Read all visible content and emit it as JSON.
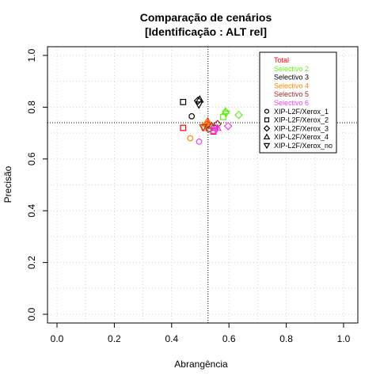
{
  "chart_data": {
    "type": "scatter",
    "title": "Comparação de cenários",
    "subtitle": "[Identificação : ALT rel]",
    "xlabel": "Abrangência",
    "ylabel": "Precisão",
    "xlim": [
      0,
      1
    ],
    "ylim": [
      0,
      1
    ],
    "xticks": [
      "0.0",
      "0.2",
      "0.4",
      "0.6",
      "0.8",
      "1.0"
    ],
    "yticks": [
      "0.0",
      "0.2",
      "0.4",
      "0.6",
      "0.8",
      "1.0"
    ],
    "grid": true,
    "reference_lines": {
      "x": 0.527,
      "y": 0.74
    },
    "legend_position": "top-right",
    "legend_colors": [
      {
        "name": "Total",
        "color": "#ff0000"
      },
      {
        "name": "Selectivo 2",
        "color": "#66ee22"
      },
      {
        "name": "Selectivo 3",
        "color": "#000000"
      },
      {
        "name": "Selectivo 4",
        "color": "#ff8800"
      },
      {
        "name": "Selectivo 5",
        "color": "#a52a2a"
      },
      {
        "name": "Selectivo 6",
        "color": "#ee44ee"
      }
    ],
    "legend_shapes": [
      {
        "name": "XIP-L2F/Xerox_1",
        "shape": "circle"
      },
      {
        "name": "XIP-L2F/Xerox_2",
        "shape": "square"
      },
      {
        "name": "XIP-L2F/Xerox_3",
        "shape": "diamond"
      },
      {
        "name": "XIP-L2F/Xerox_4",
        "shape": "triangle-up"
      },
      {
        "name": "XIP-L2F/Xerox_no",
        "shape": "triangle-down"
      }
    ],
    "points": [
      {
        "x": 0.523,
        "y": 0.735,
        "shape": "circle",
        "color": "#ff0000"
      },
      {
        "x": 0.44,
        "y": 0.72,
        "shape": "square",
        "color": "#ff0000"
      },
      {
        "x": 0.546,
        "y": 0.706,
        "shape": "square",
        "color": "#ff0000"
      },
      {
        "x": 0.526,
        "y": 0.745,
        "shape": "triangle-up",
        "color": "#ff0000"
      },
      {
        "x": 0.521,
        "y": 0.725,
        "shape": "triangle-down",
        "color": "#ff0000"
      },
      {
        "x": 0.59,
        "y": 0.78,
        "shape": "circle",
        "color": "#66ee22"
      },
      {
        "x": 0.58,
        "y": 0.762,
        "shape": "square",
        "color": "#66ee22"
      },
      {
        "x": 0.634,
        "y": 0.77,
        "shape": "diamond",
        "color": "#66ee22"
      },
      {
        "x": 0.588,
        "y": 0.785,
        "shape": "triangle-up",
        "color": "#66ee22"
      },
      {
        "x": 0.59,
        "y": 0.775,
        "shape": "triangle-down",
        "color": "#66ee22"
      },
      {
        "x": 0.47,
        "y": 0.765,
        "shape": "circle",
        "color": "#000000"
      },
      {
        "x": 0.44,
        "y": 0.82,
        "shape": "square",
        "color": "#000000"
      },
      {
        "x": 0.492,
        "y": 0.825,
        "shape": "diamond",
        "color": "#000000"
      },
      {
        "x": 0.498,
        "y": 0.83,
        "shape": "triangle-up",
        "color": "#000000"
      },
      {
        "x": 0.495,
        "y": 0.81,
        "shape": "triangle-down",
        "color": "#000000"
      },
      {
        "x": 0.465,
        "y": 0.68,
        "shape": "circle",
        "color": "#ff8800"
      },
      {
        "x": 0.515,
        "y": 0.72,
        "shape": "square",
        "color": "#ff8800"
      },
      {
        "x": 0.525,
        "y": 0.74,
        "shape": "diamond",
        "color": "#ff8800"
      },
      {
        "x": 0.52,
        "y": 0.738,
        "shape": "triangle-up",
        "color": "#ff8800"
      },
      {
        "x": 0.518,
        "y": 0.728,
        "shape": "triangle-down",
        "color": "#ff8800"
      },
      {
        "x": 0.53,
        "y": 0.715,
        "shape": "circle",
        "color": "#a52a2a"
      },
      {
        "x": 0.55,
        "y": 0.72,
        "shape": "square",
        "color": "#a52a2a"
      },
      {
        "x": 0.56,
        "y": 0.735,
        "shape": "diamond",
        "color": "#a52a2a"
      },
      {
        "x": 0.54,
        "y": 0.728,
        "shape": "triangle-up",
        "color": "#a52a2a"
      },
      {
        "x": 0.51,
        "y": 0.722,
        "shape": "triangle-down",
        "color": "#a52a2a"
      },
      {
        "x": 0.496,
        "y": 0.667,
        "shape": "circle",
        "color": "#ee44ee"
      },
      {
        "x": 0.547,
        "y": 0.71,
        "shape": "square",
        "color": "#ee44ee"
      },
      {
        "x": 0.597,
        "y": 0.727,
        "shape": "diamond",
        "color": "#ee44ee"
      },
      {
        "x": 0.56,
        "y": 0.72,
        "shape": "triangle-up",
        "color": "#ee44ee"
      },
      {
        "x": 0.555,
        "y": 0.712,
        "shape": "triangle-down",
        "color": "#ee44ee"
      }
    ]
  }
}
